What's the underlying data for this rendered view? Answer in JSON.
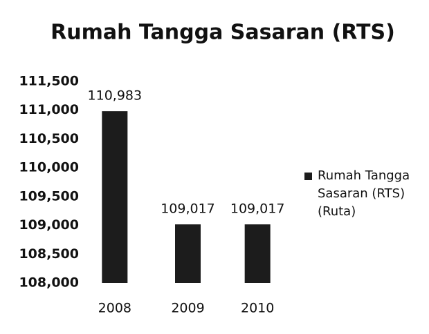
{
  "chart_data": {
    "type": "bar",
    "title": "Rumah Tangga Sasaran (RTS)",
    "categories": [
      "2008",
      "2009",
      "2010"
    ],
    "series": [
      {
        "name": "Rumah Tangga Sasaran (RTS) (Ruta)",
        "color": "#1c1c1c",
        "values": [
          110983,
          109017,
          109017
        ],
        "value_labels": [
          "110,983",
          "109,017",
          "109,017"
        ]
      }
    ],
    "ylim": [
      108000,
      111500
    ],
    "yticks": [
      {
        "value": 108000,
        "label": "108,000"
      },
      {
        "value": 108500,
        "label": "108,500"
      },
      {
        "value": 109000,
        "label": "109,000"
      },
      {
        "value": 109500,
        "label": "109,500"
      },
      {
        "value": 110000,
        "label": "110,000"
      },
      {
        "value": 110500,
        "label": "110,500"
      },
      {
        "value": 111000,
        "label": "111,000"
      },
      {
        "value": 111500,
        "label": "111,500"
      }
    ],
    "legend": "right"
  }
}
